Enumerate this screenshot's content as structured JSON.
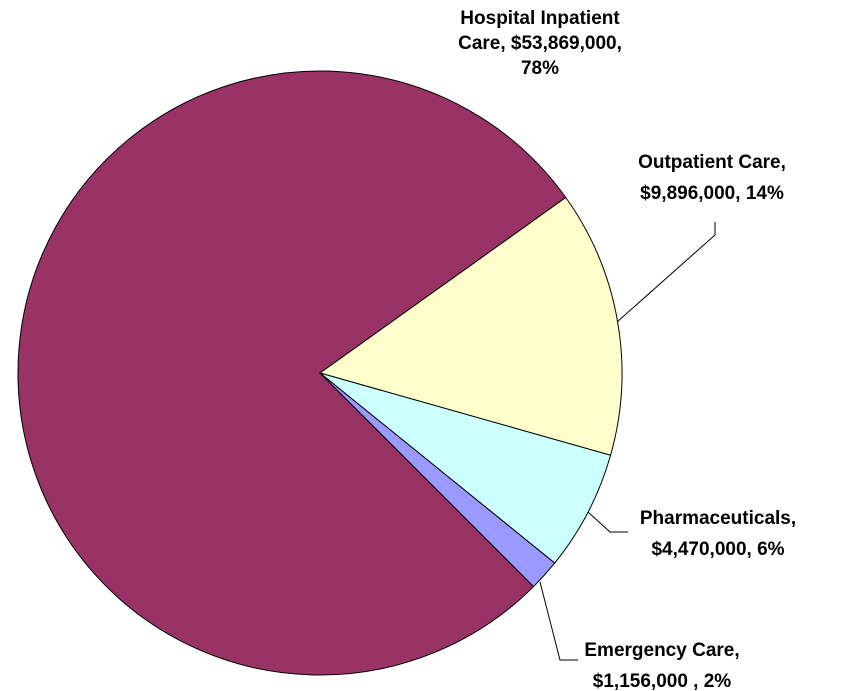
{
  "chart_data": {
    "type": "pie",
    "categories": [
      "Hospital Inpatient Care,",
      "Outpatient Care,",
      "Pharmaceuticals,",
      "Emergency Care,"
    ],
    "values": [
      53869000,
      9896000,
      4470000,
      1156000
    ],
    "value_labels": [
      "$53,869,000,",
      "$9,896,000,",
      "$4,470,000,",
      "$1,156,000 ,"
    ],
    "percent_labels": [
      "78%",
      "14%",
      "6%",
      "2%"
    ],
    "colors": [
      "#993366",
      "#ffffcc",
      "#ccffff",
      "#9999ff"
    ]
  }
}
